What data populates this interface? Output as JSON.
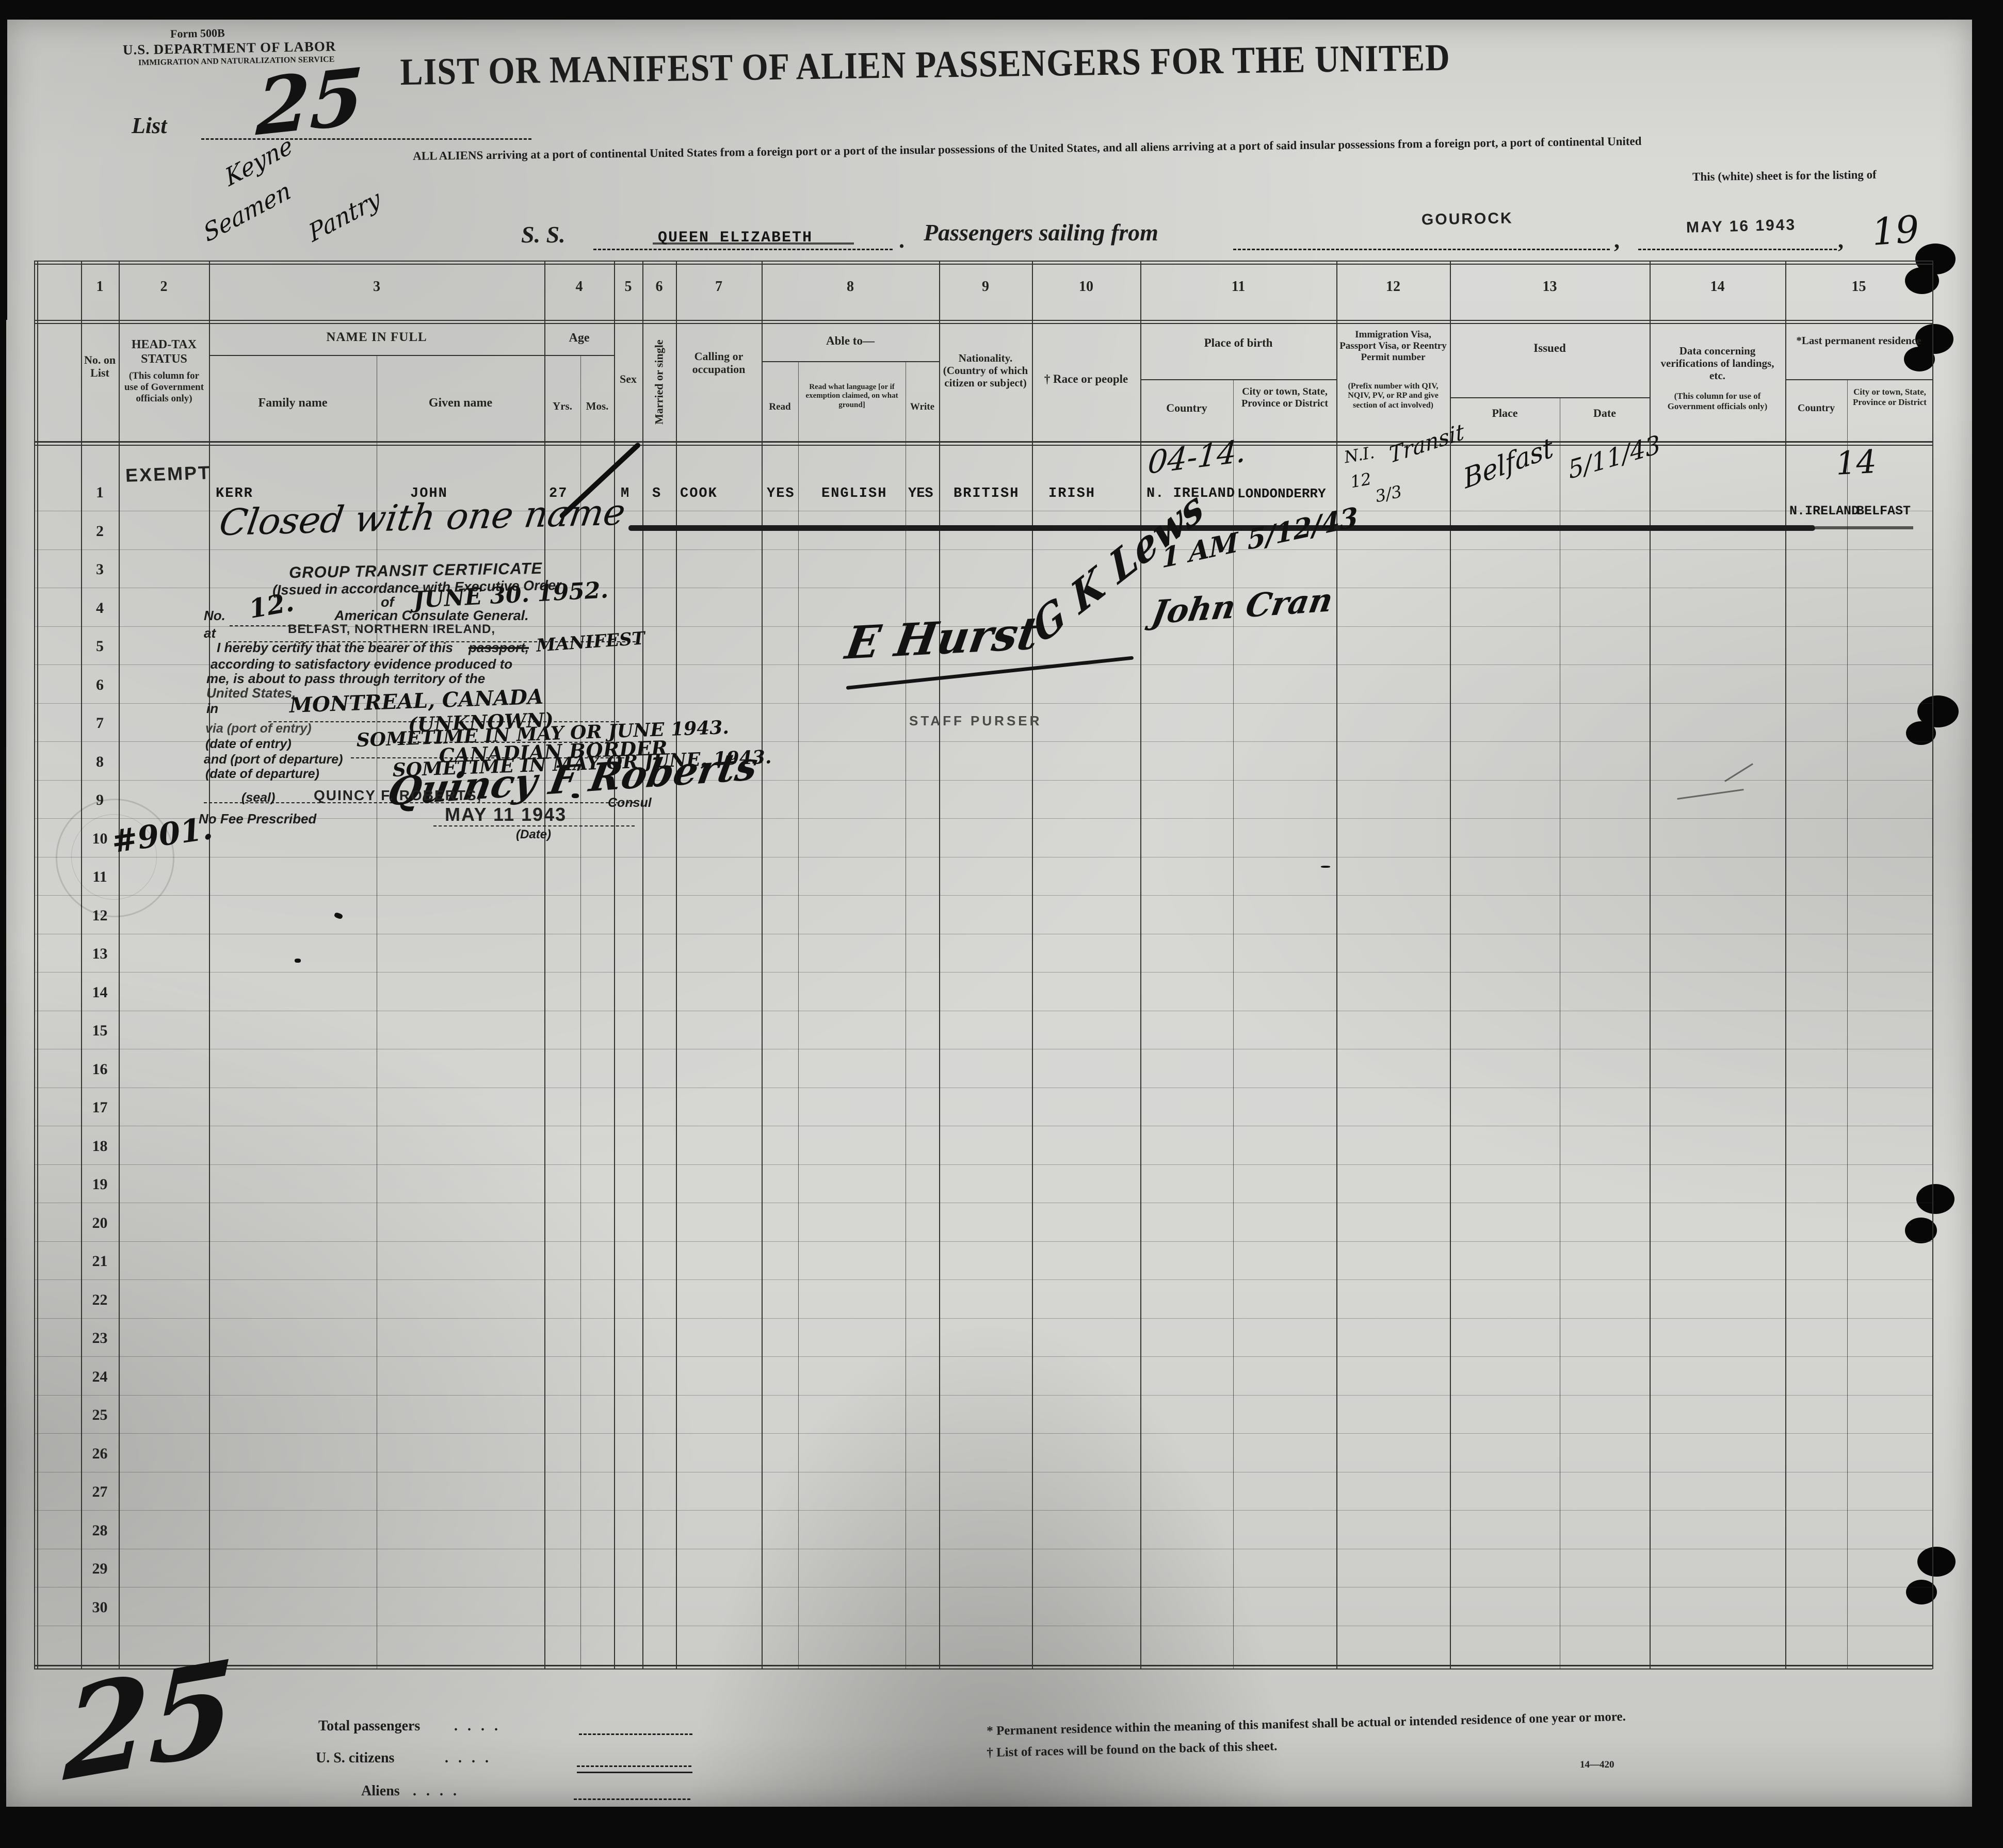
{
  "form": {
    "form_number": "Form 500B",
    "department": "U.S. DEPARTMENT OF LABOR",
    "service": "IMMIGRATION AND NATURALIZATION SERVICE",
    "list_label": "List",
    "list_number_script": "25",
    "margin_note_1": "Keyne",
    "margin_note_2": "Seamen",
    "margin_note_3": "Pantry"
  },
  "title": {
    "main": "LIST OR MANIFEST OF ALIEN PASSENGERS FOR THE UNITED",
    "subtitle1": "ALL ALIENS arriving at a port of continental United States from a foreign port or a port of the insular possessions of the United States, and all aliens arriving at a port of said insular possessions from a foreign port, a port of continental United",
    "subtitle2": "This (white) sheet is for the listing of"
  },
  "voyage": {
    "ss_label": "S. S.",
    "ship_name": "QUEEN ELIZABETH",
    "period": ".",
    "sailing_label": "Passengers sailing from",
    "port_stamp": "GOUROCK",
    "comma1": ",",
    "date_stamp": "MAY 16 1943",
    "comma2": ",",
    "year_script": "19"
  },
  "table": {
    "row_numbers": [
      "1",
      "2",
      "3",
      "4",
      "5",
      "6",
      "7",
      "8",
      "9",
      "10",
      "11",
      "12",
      "13",
      "14",
      "15",
      "16",
      "17",
      "18",
      "19",
      "20",
      "21",
      "22",
      "23",
      "24",
      "25",
      "26",
      "27",
      "28",
      "29",
      "30"
    ],
    "columns": {
      "c1": {
        "num": "1",
        "label": "No. on List"
      },
      "c2": {
        "num": "2",
        "label": "HEAD-TAX STATUS",
        "note": "(This column for use of Government officials only)"
      },
      "c3": {
        "num": "3",
        "label": "NAME IN FULL",
        "sub1": "Family name",
        "sub2": "Given name"
      },
      "c4": {
        "num": "4",
        "label": "Age",
        "sub1": "Yrs.",
        "sub2": "Mos."
      },
      "c5": {
        "num": "5",
        "label": "Sex"
      },
      "c6": {
        "num": "6",
        "label": "Married or single"
      },
      "c7": {
        "num": "7",
        "label": "Calling or occupation"
      },
      "c8": {
        "num": "8",
        "label": "Able to—",
        "sub1": "Read",
        "sub2": "Read what language [or if exemption claimed, on what ground]",
        "sub3": "Write"
      },
      "c9": {
        "num": "9",
        "label": "Nationality. (Country of which citizen or subject)"
      },
      "c10": {
        "num": "10",
        "label": "† Race or people"
      },
      "c11": {
        "num": "11",
        "label": "Place of birth",
        "sub1": "Country",
        "sub2": "City or town, State, Province or District"
      },
      "c12": {
        "num": "12",
        "label": "Immigration Visa, Passport Visa, or Reentry Permit number",
        "note": "(Prefix number with QIV, NQIV, PV, or RP and give section of act involved)"
      },
      "c13": {
        "num": "13",
        "label": "Issued",
        "sub1": "Place",
        "sub2": "Date"
      },
      "c14": {
        "num": "14",
        "label": "Data concerning verifications of landings, etc.",
        "note": "(This column for use of Government officials only)"
      },
      "c15": {
        "num": "15",
        "label": "*Last permanent residence",
        "sub1": "Country",
        "sub2": "City or town, State, Province or District"
      }
    }
  },
  "row1": {
    "head_tax": "EXEMPT",
    "family": "KERR",
    "given": "JOHN",
    "yrs": "27",
    "mos_mark": "-",
    "sex": "M",
    "marital": "S",
    "calling": "COOK",
    "read": "YES",
    "language": "ENGLISH",
    "write": "YES",
    "nationality": "BRITISH",
    "race": "IRISH",
    "birth_country": "N. IRELAND",
    "birth_city": "LONDONDERRY",
    "birth_annotation": "04-14.",
    "visa_hand_1": "N.I.",
    "visa_hand_2": "12",
    "visa_hand_3": "3/3",
    "visa_hand_4": "Transit",
    "issued_place": "Belfast",
    "issued_date": "5/11/43",
    "residence_annotation": "14",
    "residence_country": "N.IRELAND",
    "residence_city": "BELFAST"
  },
  "row2": {
    "note": "Closed with one name"
  },
  "certificate": {
    "line1": "GROUP TRANSIT CERTIFICATE",
    "line2": "(Issued in accordance with Executive Order",
    "line3_prefix": "of",
    "line3_hand": "JUNE 30. 1952.",
    "no_label": "No.",
    "no_hand": "12.",
    "consulate": "American Consulate General.",
    "at_label": "at",
    "at_stamp": "BELFAST, NORTHERN IRELAND,",
    "certify": "I hereby certify that the bearer of this",
    "certify_struck": "passport,",
    "certify_hand": "MANIFEST",
    "line7": "according to satisfactory evidence produced to",
    "line8": "me, is about to pass through territory of the",
    "line9": "United States,",
    "in_label": "in",
    "in_hand": "MONTREAL, CANADA",
    "via_label": "via (port of entry)",
    "via_hand": "(UNKNOWN)",
    "entry_label": "(date of entry)",
    "entry_hand": "SOMETIME IN MAY OR JUNE 1943.",
    "dep_port_label": "and (port of departure)",
    "dep_port_hand": "CANADIAN BORDER",
    "dep_date_label": "(date of departure)",
    "dep_date_hand": "SOMETIME IN MAY OR JUNE, 1943.",
    "consul_signature": "Quincy F Roberts",
    "seal_label": "(seal)",
    "consul_name": "QUINCY F. ROBERTS,",
    "consul_title": "Consul",
    "fee_note": "No Fee Prescribed",
    "date_stamp": "MAY 11 1943",
    "date_label": "(Date)",
    "number_note": "#901."
  },
  "signatures": {
    "sig_right_1": "G K Lews",
    "time_note": "1 AM 5/12/43",
    "sig_right_2": "John Cran",
    "purser_signature": "E Hurst",
    "purser_title": "STAFF PURSER"
  },
  "totals": {
    "list_number_script": "25",
    "total_label": "Total passengers",
    "citizens_label": "U. S. citizens",
    "aliens_label": "Aliens",
    "leader": ".    .    .    ."
  },
  "footnotes": {
    "f1": "* Permanent residence within the meaning of this manifest shall be actual or intended residence of one year or more.",
    "f2": "† List of races will be found on the back of this sheet.",
    "form_code": "14—420"
  }
}
